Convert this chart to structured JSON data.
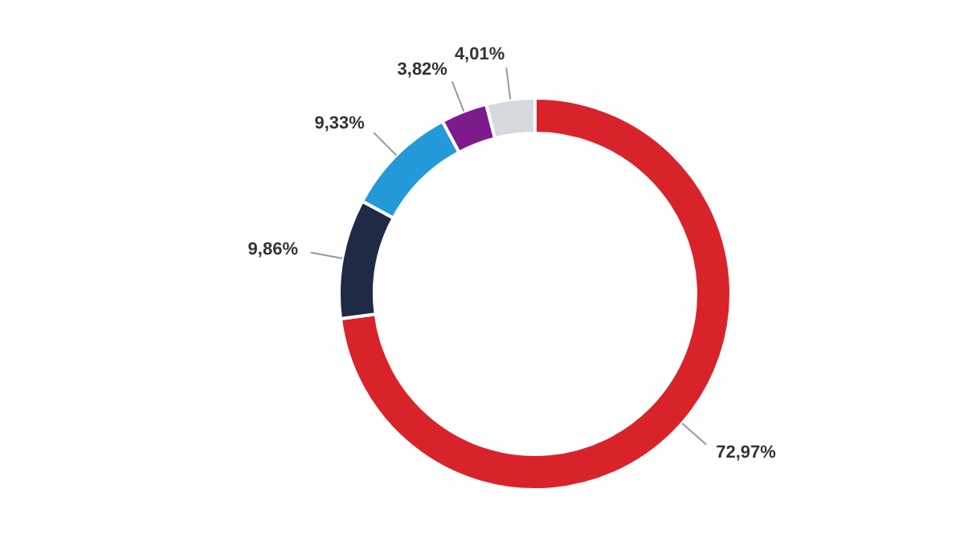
{
  "chart_data": {
    "type": "donut",
    "categories": [
      null,
      null,
      null,
      null,
      null
    ],
    "values": [
      72.97,
      9.86,
      9.33,
      3.82,
      4.01
    ],
    "colors": [
      "#d9232b",
      "#1f2a45",
      "#2499d9",
      "#7d1a8c",
      "#d6d9dd"
    ],
    "value_labels": [
      "72,97%",
      "9,86%",
      "9,33%",
      "3,82%",
      "4,01%"
    ],
    "legend": false
  }
}
